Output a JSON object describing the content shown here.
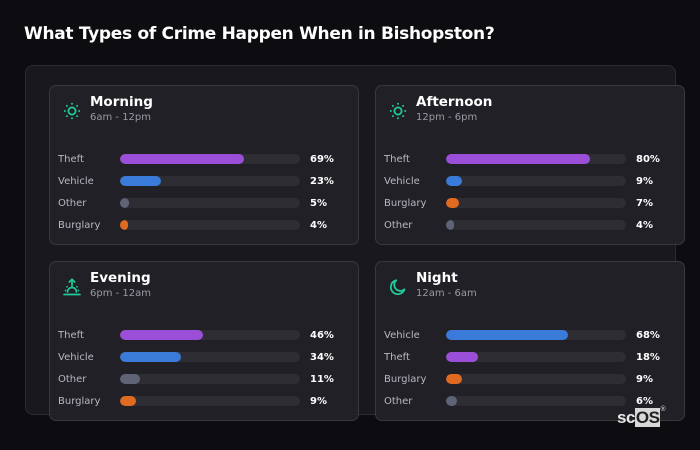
{
  "page": {
    "title": "What Types of Crime Happen When in Bishopston?"
  },
  "brand": {
    "left": "sc",
    "right": "OS",
    "mark": "®"
  },
  "colors": {
    "Theft": "#9b4fd8",
    "Vehicle": "#3a7ad8",
    "Other": "#5e6475",
    "Burglary": "#e06b20",
    "accent": "#20c997"
  },
  "cards": [
    {
      "name": "Morning",
      "range": "6am - 12pm",
      "icon": "sun-icon",
      "rows": [
        {
          "label": "Theft",
          "value": 69,
          "pct": "69%"
        },
        {
          "label": "Vehicle",
          "value": 23,
          "pct": "23%"
        },
        {
          "label": "Other",
          "value": 5,
          "pct": "5%"
        },
        {
          "label": "Burglary",
          "value": 4,
          "pct": "4%"
        }
      ]
    },
    {
      "name": "Afternoon",
      "range": "12pm - 6pm",
      "icon": "sun-icon",
      "rows": [
        {
          "label": "Theft",
          "value": 80,
          "pct": "80%"
        },
        {
          "label": "Vehicle",
          "value": 9,
          "pct": "9%"
        },
        {
          "label": "Burglary",
          "value": 7,
          "pct": "7%"
        },
        {
          "label": "Other",
          "value": 4,
          "pct": "4%"
        }
      ]
    },
    {
      "name": "Evening",
      "range": "6pm - 12am",
      "icon": "sunset-icon",
      "rows": [
        {
          "label": "Theft",
          "value": 46,
          "pct": "46%"
        },
        {
          "label": "Vehicle",
          "value": 34,
          "pct": "34%"
        },
        {
          "label": "Other",
          "value": 11,
          "pct": "11%"
        },
        {
          "label": "Burglary",
          "value": 9,
          "pct": "9%"
        }
      ]
    },
    {
      "name": "Night",
      "range": "12am - 6am",
      "icon": "moon-icon",
      "rows": [
        {
          "label": "Vehicle",
          "value": 68,
          "pct": "68%"
        },
        {
          "label": "Theft",
          "value": 18,
          "pct": "18%"
        },
        {
          "label": "Burglary",
          "value": 9,
          "pct": "9%"
        },
        {
          "label": "Other",
          "value": 6,
          "pct": "6%"
        }
      ]
    }
  ],
  "chart_data": {
    "type": "bar",
    "title": "What Types of Crime Happen When in Bishopston?",
    "orientation": "horizontal",
    "unit": "%",
    "xlim": [
      0,
      100
    ],
    "panels": [
      {
        "title": "Morning",
        "subtitle": "6am - 12pm",
        "categories": [
          "Theft",
          "Vehicle",
          "Other",
          "Burglary"
        ],
        "values": [
          69,
          23,
          5,
          4
        ]
      },
      {
        "title": "Afternoon",
        "subtitle": "12pm - 6pm",
        "categories": [
          "Theft",
          "Vehicle",
          "Burglary",
          "Other"
        ],
        "values": [
          80,
          9,
          7,
          4
        ]
      },
      {
        "title": "Evening",
        "subtitle": "6pm - 12am",
        "categories": [
          "Theft",
          "Vehicle",
          "Other",
          "Burglary"
        ],
        "values": [
          46,
          34,
          11,
          9
        ]
      },
      {
        "title": "Night",
        "subtitle": "12am - 6am",
        "categories": [
          "Vehicle",
          "Theft",
          "Burglary",
          "Other"
        ],
        "values": [
          68,
          18,
          9,
          6
        ]
      }
    ],
    "legend": "none",
    "grid": false
  }
}
